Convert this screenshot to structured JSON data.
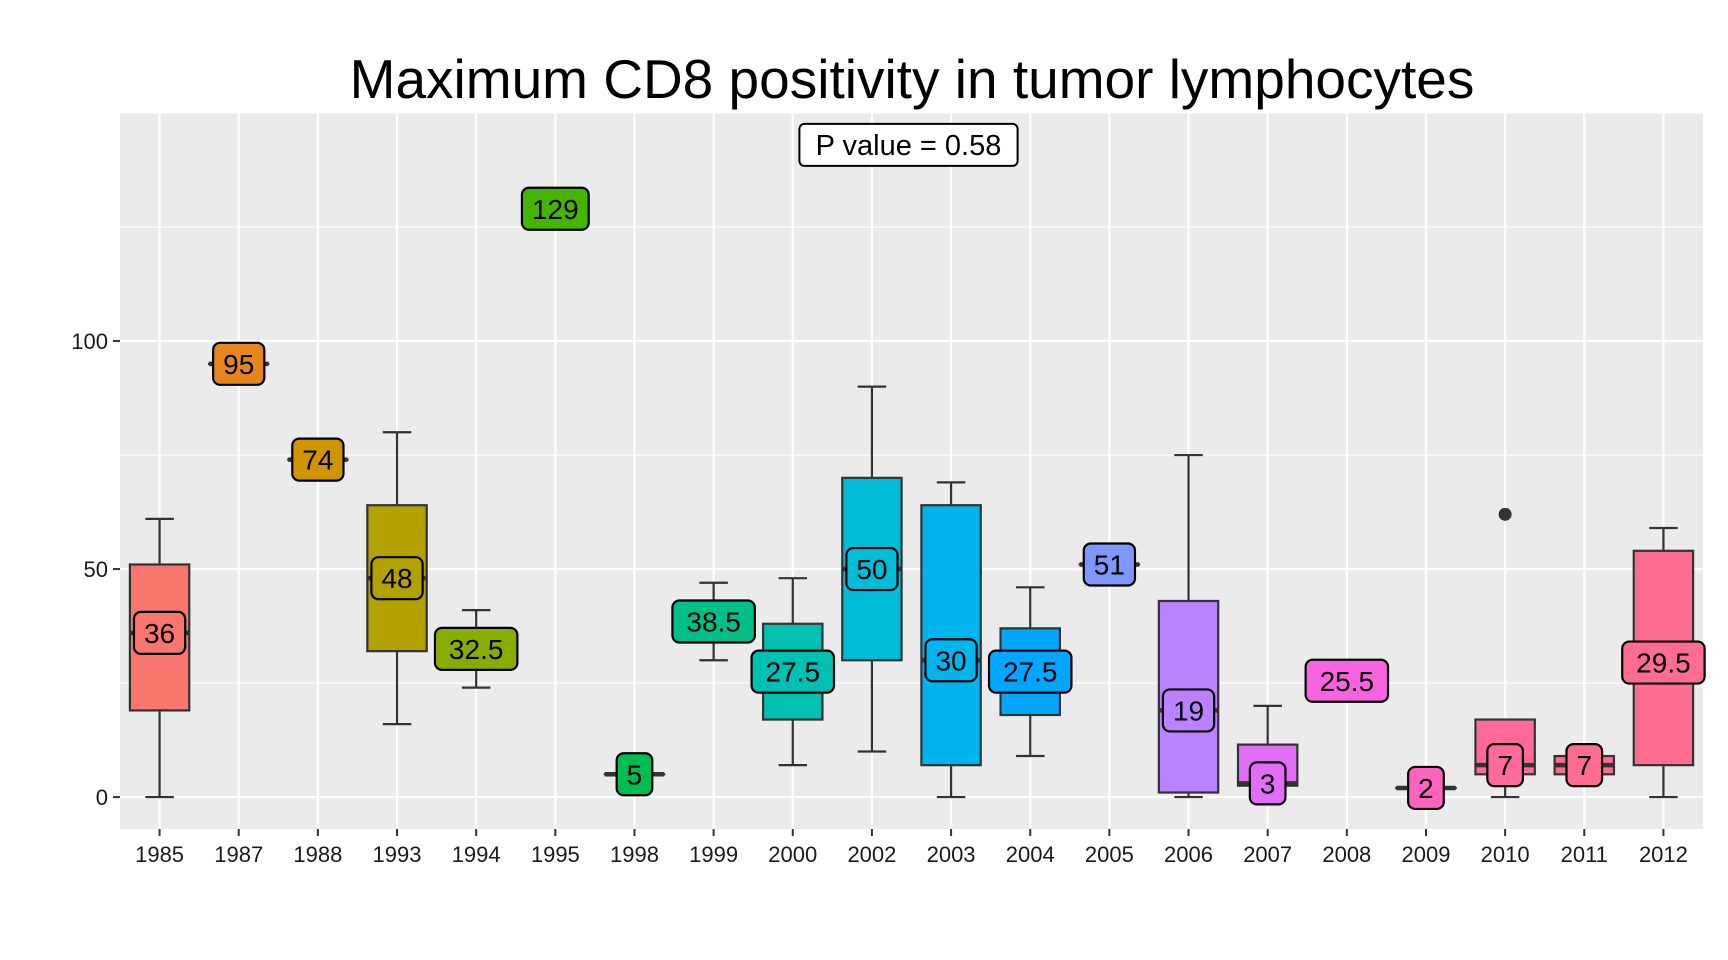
{
  "chart_data": {
    "type": "box",
    "title": "Maximum CD8 positivity in tumor lymphocytes",
    "xlabel": "",
    "ylabel": "",
    "ylim": [
      -7,
      150
    ],
    "yticks": [
      0,
      50,
      100
    ],
    "grid": true,
    "annotation": "P value = 0.58",
    "annotation_y": 143,
    "categories": [
      "1985",
      "1987",
      "1988",
      "1993",
      "1994",
      "1995",
      "1998",
      "1999",
      "2000",
      "2002",
      "2003",
      "2004",
      "2005",
      "2006",
      "2007",
      "2008",
      "2009",
      "2010",
      "2011",
      "2012"
    ],
    "series": [
      {
        "category": "1985",
        "color": "#F8766D",
        "min": 0,
        "q1": 19,
        "median": 36,
        "q3": 51,
        "max": 61,
        "label": "36",
        "outliers": []
      },
      {
        "category": "1987",
        "color": "#E7851E",
        "min": 95,
        "q1": 95,
        "median": 95,
        "q3": 95,
        "max": 95,
        "label": "95",
        "outliers": []
      },
      {
        "category": "1988",
        "color": "#D09400",
        "min": 74,
        "q1": 74,
        "median": 74,
        "q3": 74,
        "max": 74,
        "label": "74",
        "outliers": []
      },
      {
        "category": "1993",
        "color": "#B2A100",
        "min": 16,
        "q1": 32,
        "median": 48,
        "q3": 64,
        "max": 80,
        "label": "48",
        "outliers": []
      },
      {
        "category": "1994",
        "color": "#89AC00",
        "min": 24,
        "q1": 28.75,
        "median": 32.5,
        "q3": 36.25,
        "max": 41,
        "label": "32.5",
        "outliers": []
      },
      {
        "category": "1995",
        "color": "#45B500",
        "min": 129,
        "q1": 129,
        "median": 129,
        "q3": 129,
        "max": 129,
        "label": "129",
        "outliers": []
      },
      {
        "category": "1998",
        "color": "#00BC51",
        "min": 5,
        "q1": 5,
        "median": 5,
        "q3": 5,
        "max": 5,
        "label": "5",
        "outliers": []
      },
      {
        "category": "1999",
        "color": "#00C087",
        "min": 30,
        "q1": 34.25,
        "median": 38.5,
        "q3": 42.75,
        "max": 47,
        "label": "38.5",
        "outliers": []
      },
      {
        "category": "2000",
        "color": "#00C0B2",
        "min": 7,
        "q1": 17,
        "median": 27.5,
        "q3": 38,
        "max": 48,
        "label": "27.5",
        "outliers": []
      },
      {
        "category": "2002",
        "color": "#00BCD6",
        "min": 10,
        "q1": 30,
        "median": 50,
        "q3": 70,
        "max": 90,
        "label": "50",
        "outliers": []
      },
      {
        "category": "2003",
        "color": "#00B5EE",
        "min": 0,
        "q1": 7,
        "median": 30,
        "q3": 64,
        "max": 69,
        "label": "30",
        "outliers": []
      },
      {
        "category": "2004",
        "color": "#00A6FF",
        "min": 9,
        "q1": 18,
        "median": 27.5,
        "q3": 37,
        "max": 46,
        "label": "27.5",
        "outliers": []
      },
      {
        "category": "2005",
        "color": "#7F96FF",
        "min": 51,
        "q1": 51,
        "median": 51,
        "q3": 51,
        "max": 51,
        "label": "51",
        "outliers": []
      },
      {
        "category": "2006",
        "color": "#BC81FF",
        "min": 0,
        "q1": 1,
        "median": 19,
        "q3": 43,
        "max": 75,
        "label": "19",
        "outliers": []
      },
      {
        "category": "2007",
        "color": "#E26EF7",
        "min": 2,
        "q1": 2.5,
        "median": 3,
        "q3": 11.5,
        "max": 20,
        "label": "3",
        "outliers": []
      },
      {
        "category": "2008",
        "color": "#F863DF",
        "min": 25.5,
        "q1": 25.5,
        "median": 25.5,
        "q3": 25.5,
        "max": 25.5,
        "label": "25.5",
        "outliers": []
      },
      {
        "category": "2009",
        "color": "#FF62BF",
        "min": 2,
        "q1": 2,
        "median": 2,
        "q3": 2,
        "max": 2,
        "label": "2",
        "outliers": []
      },
      {
        "category": "2010",
        "color": "#FF6A98",
        "min": 0,
        "q1": 5,
        "median": 7,
        "q3": 17,
        "max": 17,
        "label": "7",
        "outliers": [
          62
        ]
      },
      {
        "category": "2011",
        "color": "#FF6C91",
        "min": 5,
        "q1": 5,
        "median": 7,
        "q3": 9,
        "max": 9,
        "label": "7",
        "outliers": []
      },
      {
        "category": "2012",
        "color": "#FF6C91",
        "min": 0,
        "q1": 7,
        "median": 29.5,
        "q3": 54,
        "max": 59,
        "label": "29.5",
        "outliers": []
      }
    ]
  }
}
